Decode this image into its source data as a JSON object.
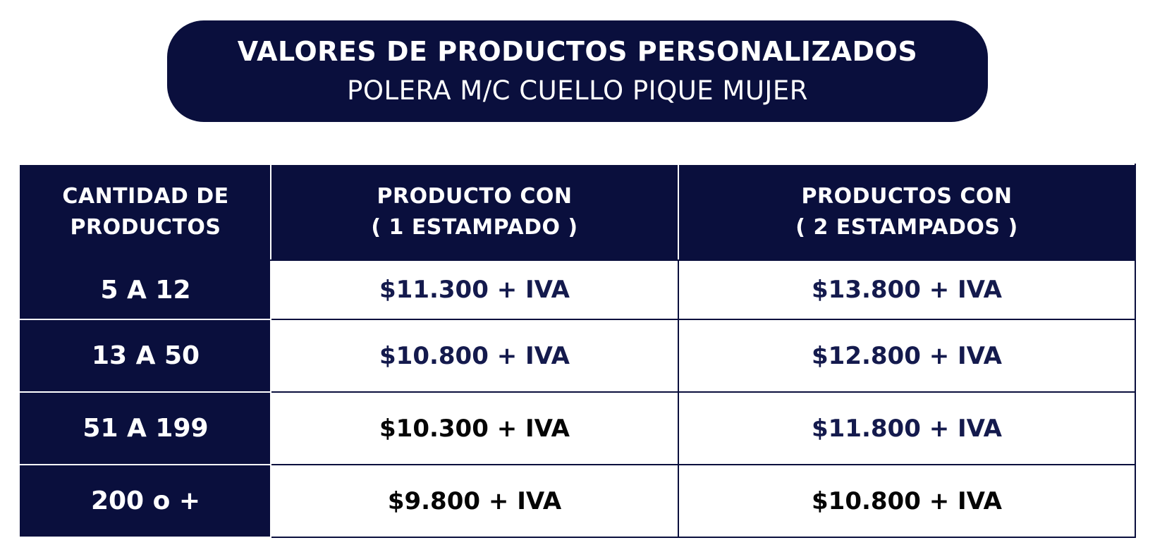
{
  "header": {
    "title": "VALORES DE PRODUCTOS PERSONALIZADOS",
    "subtitle": "POLERA M/C CUELLO PIQUE MUJER"
  },
  "table": {
    "columns": [
      {
        "line1": "CANTIDAD DE",
        "line2": "PRODUCTOS"
      },
      {
        "line1": "PRODUCTO CON",
        "line2": "( 1 ESTAMPADO )"
      },
      {
        "line1": "PRODUCTOS CON",
        "line2": "( 2 ESTAMPADOS )"
      }
    ],
    "rows": [
      {
        "quantity": "5 A 12",
        "one_print": "$11.300 + IVA",
        "two_prints": "$13.800 + IVA"
      },
      {
        "quantity": "13 A 50",
        "one_print": "$10.800 + IVA",
        "two_prints": "$12.800 + IVA"
      },
      {
        "quantity": "51 A 199",
        "one_print": "$10.300 + IVA",
        "two_prints": "$11.800 + IVA"
      },
      {
        "quantity": "200 o +",
        "one_print": "$9.800 + IVA",
        "two_prints": "$10.800 + IVA"
      }
    ]
  },
  "colors": {
    "navy": "#0a0f3d",
    "white": "#ffffff"
  }
}
